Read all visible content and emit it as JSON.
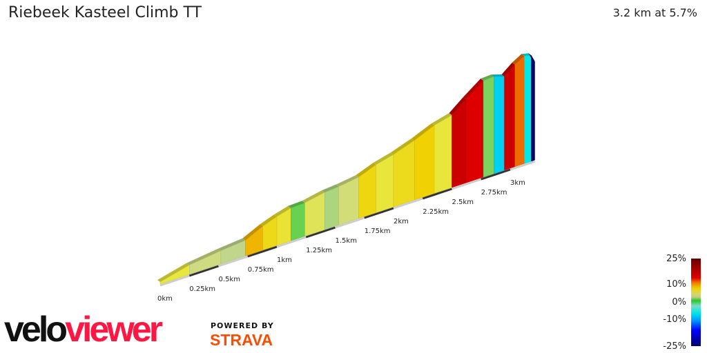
{
  "header": {
    "title": "Riebeek Kasteel Climb TT",
    "summary": "3.2 km at 5.7%"
  },
  "chart_data": {
    "type": "area",
    "title": "Riebeek Kasteel Climb TT",
    "x_unit": "km",
    "distance_km": [
      0,
      0.25,
      0.52,
      0.73,
      0.88,
      1.0,
      1.12,
      1.24,
      1.41,
      1.53,
      1.7,
      1.85,
      2.0,
      2.18,
      2.35,
      2.5,
      2.62,
      2.77,
      2.86,
      2.95,
      3.04,
      3.12,
      3.18,
      3.21
    ],
    "elevation_m": [
      0,
      13,
      20,
      24,
      39,
      48,
      55,
      56,
      63,
      65,
      70,
      82,
      90,
      103,
      118,
      126,
      146,
      169,
      170,
      164,
      179,
      189,
      186,
      173
    ],
    "x_ticks": [
      "0km",
      "0.25km",
      "0.5km",
      "0.75km",
      "1km",
      "1.25km",
      "1.5km",
      "1.75km",
      "2km",
      "2.25km",
      "2.5km",
      "2.75km",
      "3km"
    ],
    "color_scale": {
      "label_ticks": [
        "25%",
        "10%",
        "0%",
        "-10%",
        "-25%"
      ],
      "range": [
        -25,
        25
      ]
    }
  },
  "logos": {
    "velo": "velo",
    "viewer": "viewer",
    "powered_by": "POWERED BY",
    "strava": "STRAVA"
  }
}
